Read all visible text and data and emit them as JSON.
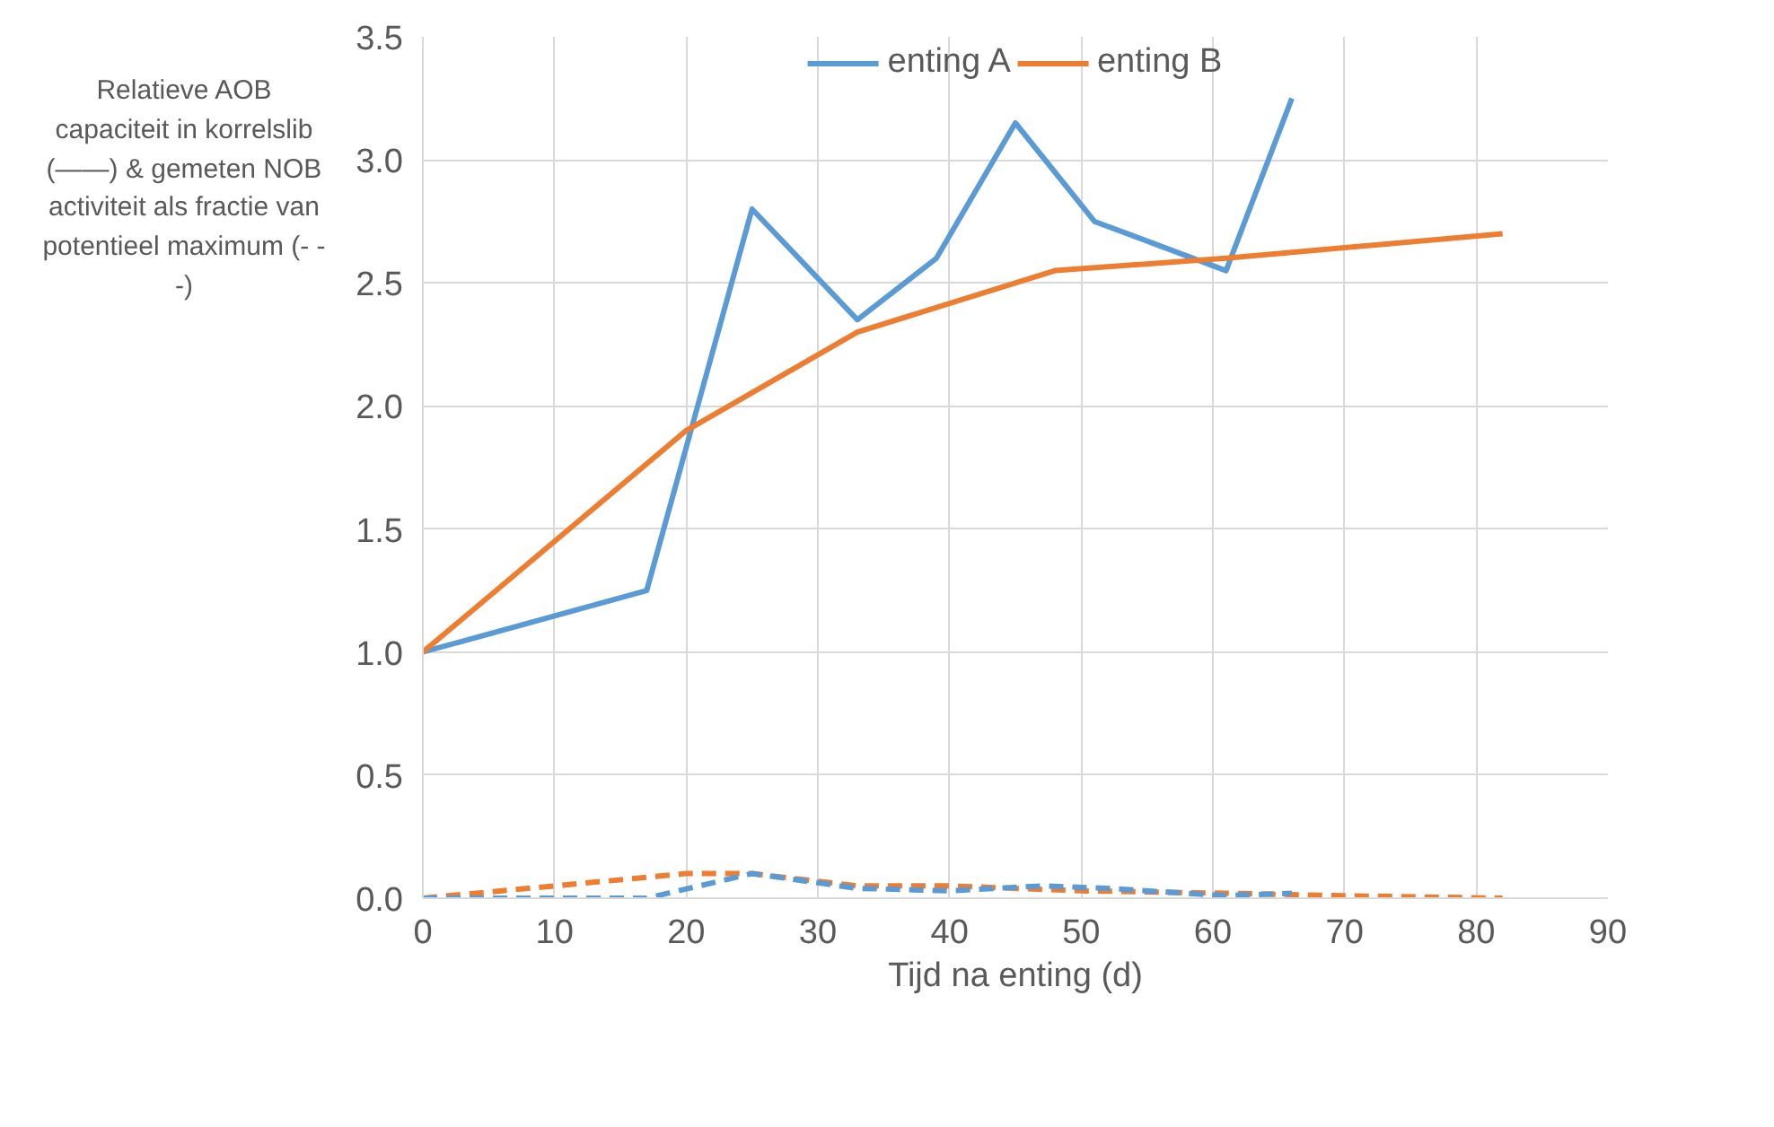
{
  "chart_data": {
    "type": "line",
    "xlabel": "Tijd na enting (d)",
    "ylabel": "Relatieve AOB capaciteit in korrelslib (——) & gemeten NOB activiteit als fractie van potentieel maximum (- - -)",
    "xlim": [
      0,
      90
    ],
    "xticks": [
      0,
      10,
      20,
      30,
      40,
      50,
      60,
      70,
      80,
      90
    ],
    "ylim": [
      0,
      3.5
    ],
    "yticks": [
      {
        "value": 0,
        "label": "0.0"
      },
      0.5,
      {
        "value": 1,
        "label": "1.0"
      },
      1.5,
      {
        "value": 2,
        "label": "2.0"
      },
      2.5,
      {
        "value": 3,
        "label": "3.0"
      },
      3.5
    ],
    "grid": true,
    "legend": "top",
    "marker": "none",
    "series": [
      {
        "name": "enting A",
        "color": "#5b9bd5",
        "line_style": "solid",
        "x": [
          0,
          17,
          25,
          33,
          39,
          45,
          51,
          61,
          66
        ],
        "values": [
          1.0,
          1.25,
          2.8,
          2.35,
          2.6,
          3.15,
          2.75,
          2.55,
          3.25
        ]
      },
      {
        "name": "enting B",
        "color": "#ed7d31",
        "line_style": "solid",
        "x": [
          0,
          20,
          33,
          48,
          61,
          82
        ],
        "values": [
          1.0,
          1.9,
          2.3,
          2.55,
          2.6,
          2.7
        ]
      },
      {
        "color": "#ed7d31",
        "line_style": "dashed",
        "x": [
          0,
          10,
          20,
          25,
          33,
          40,
          50,
          61,
          70,
          82
        ],
        "values": [
          0.0,
          0.05,
          0.1,
          0.1,
          0.05,
          0.05,
          0.03,
          0.02,
          0.01,
          0.0
        ]
      },
      {
        "color": "#5b9bd5",
        "line_style": "dashed",
        "x": [
          0,
          17,
          25,
          33,
          40,
          47,
          52,
          61,
          66
        ],
        "values": [
          0.0,
          0.0,
          0.1,
          0.04,
          0.03,
          0.05,
          0.04,
          0.01,
          0.02
        ]
      }
    ]
  }
}
